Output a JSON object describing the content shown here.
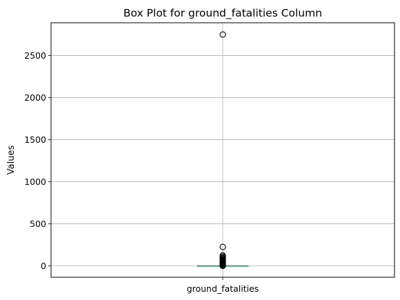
{
  "chart_data": {
    "type": "box",
    "title": "Box Plot for ground_fatalities Column",
    "xlabel": "",
    "ylabel": "Values",
    "categories": [
      "ground_fatalities"
    ],
    "ylim": [
      -135,
      2890
    ],
    "yticks": [
      0,
      500,
      1000,
      1500,
      2000,
      2500
    ],
    "grid": true,
    "box": {
      "min": 0,
      "q1": 0,
      "median": 0,
      "q3": 0,
      "max": 0
    },
    "outliers": [
      1,
      2,
      3,
      4,
      5,
      6,
      8,
      10,
      12,
      14,
      17,
      20,
      24,
      28,
      33,
      38,
      44,
      50,
      58,
      65,
      72,
      80,
      90,
      100,
      113,
      125,
      225,
      2750
    ],
    "colors": {
      "box": "#1f77b4",
      "median": "#2ca02c",
      "whisker": "#1f77b4",
      "outlier_edge": "#000000",
      "grid": "#b0b0b0"
    }
  }
}
